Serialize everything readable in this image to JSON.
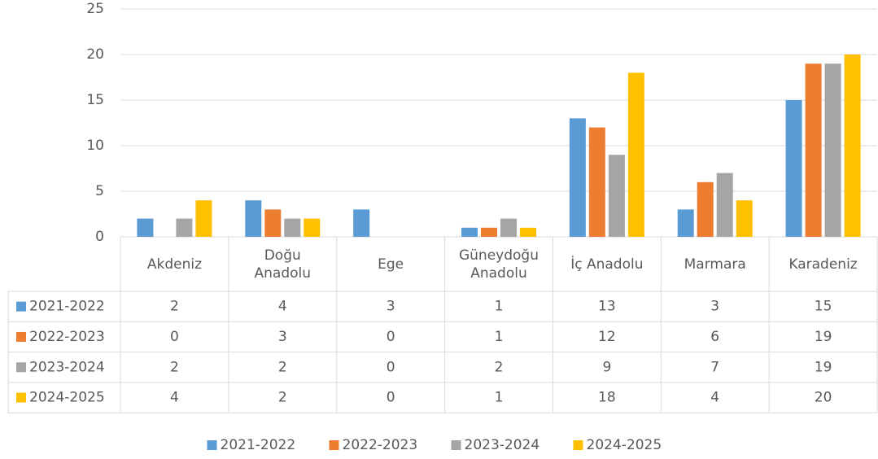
{
  "chart_data": {
    "type": "bar",
    "categories": [
      "Akdeniz",
      "Doğu\nAnadolu",
      "Ege",
      "Güneydoğu\nAnadolu",
      "İç Anadolu",
      "Marmara",
      "Karadeniz"
    ],
    "series": [
      {
        "name": "2021-2022",
        "color": "#5b9bd5",
        "values": [
          2,
          4,
          3,
          1,
          13,
          3,
          15
        ]
      },
      {
        "name": "2022-2023",
        "color": "#ed7d31",
        "values": [
          0,
          3,
          0,
          1,
          12,
          6,
          19
        ]
      },
      {
        "name": "2023-2024",
        "color": "#a5a5a5",
        "values": [
          2,
          2,
          0,
          2,
          9,
          7,
          19
        ]
      },
      {
        "name": "2024-2025",
        "color": "#ffc000",
        "values": [
          4,
          2,
          0,
          1,
          18,
          4,
          20
        ]
      }
    ],
    "ylim": [
      0,
      25
    ],
    "yticks": [
      0,
      5,
      10,
      15,
      20,
      25
    ],
    "grid": true,
    "legend": "bottom"
  }
}
